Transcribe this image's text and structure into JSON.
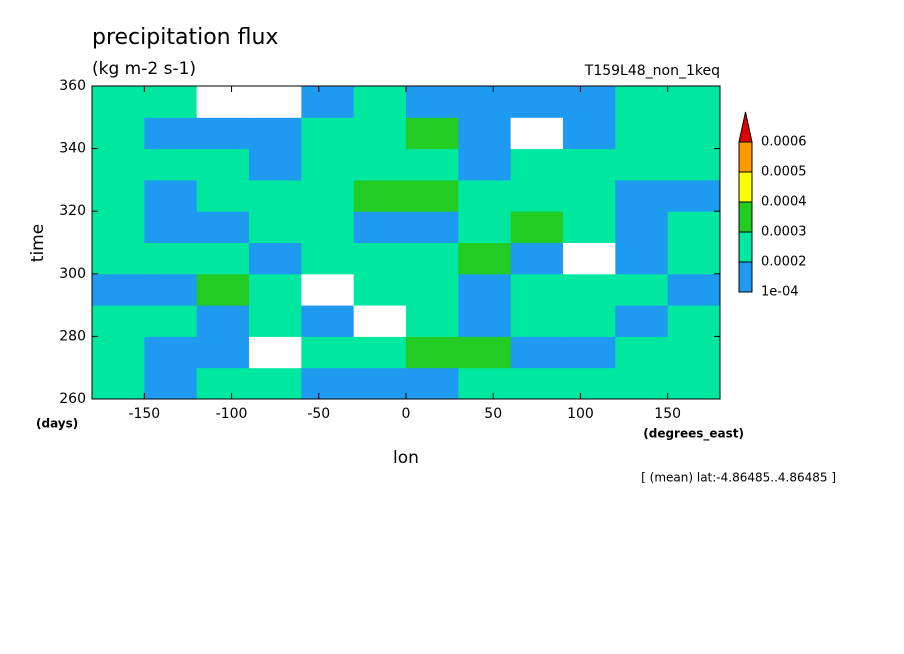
{
  "chart_data": {
    "type": "heatmap",
    "title": "precipitation flux",
    "subtitle": "(kg m-2 s-1)",
    "run_label": "T159L48_non_1keq",
    "ylabel": "time",
    "yunit": "(days)",
    "xlabel": "lon",
    "xunit": "(degrees_east)",
    "note": "[ (mean) lat:-4.86485..4.86485 ]",
    "xlim": [
      -180,
      180
    ],
    "ylim": [
      260,
      360
    ],
    "xticks": [
      -150,
      -100,
      -50,
      0,
      50,
      100,
      150
    ],
    "yticks": [
      260,
      280,
      300,
      320,
      340,
      360
    ],
    "x": [
      -165,
      -135,
      -105,
      -75,
      -45,
      -15,
      15,
      45,
      75,
      105,
      135,
      165
    ],
    "y": [
      265,
      275,
      285,
      295,
      305,
      315,
      325,
      335,
      345,
      355
    ],
    "z": [
      [
        0.00022,
        0.00018,
        0.00025,
        0.0002,
        0.00015,
        0.00018,
        0.00012,
        0.0002,
        0.00025,
        0.0002,
        0.00028,
        0.00022
      ],
      [
        0.0002,
        0.00015,
        0.00012,
        8e-05,
        0.0002,
        0.00028,
        0.00035,
        0.0003,
        0.00012,
        0.00018,
        0.00025,
        0.0002
      ],
      [
        0.00025,
        0.0002,
        0.00018,
        0.00022,
        0.00015,
        8e-05,
        0.0002,
        0.00018,
        0.00025,
        0.0002,
        0.00015,
        0.00022
      ],
      [
        0.00012,
        0.00018,
        0.00032,
        0.00025,
        6e-05,
        0.0002,
        0.00022,
        0.00015,
        0.0002,
        0.00025,
        0.0002,
        0.00018
      ],
      [
        0.0002,
        0.00025,
        0.0002,
        0.00018,
        0.00028,
        0.0002,
        0.00025,
        0.00035,
        0.00012,
        8e-05,
        0.00015,
        0.0002
      ],
      [
        0.00022,
        0.00018,
        0.00015,
        0.0002,
        0.0002,
        0.00012,
        0.00018,
        0.00025,
        0.0003,
        0.00022,
        0.00018,
        0.00025
      ],
      [
        0.00025,
        0.00015,
        0.0002,
        0.00028,
        0.00022,
        0.0003,
        0.00035,
        0.00022,
        0.0002,
        0.00025,
        0.00012,
        0.00018
      ],
      [
        0.0002,
        0.00022,
        0.00025,
        0.00018,
        0.0002,
        0.00028,
        0.00025,
        0.00018,
        0.00022,
        0.0002,
        0.00028,
        0.00025
      ],
      [
        0.00028,
        0.0001,
        0.00015,
        0.00018,
        0.00022,
        0.00025,
        0.0003,
        0.00012,
        6e-05,
        0.00018,
        0.00025,
        0.00028
      ],
      [
        0.00022,
        0.0002,
        8e-05,
        6e-05,
        0.00018,
        0.0002,
        0.00015,
        0.00018,
        0.0001,
        0.00015,
        0.0002,
        0.00025
      ]
    ],
    "levels": [
      {
        "value": 0.0001,
        "label": "1e-04"
      },
      0.0002,
      0.0003,
      0.0004,
      0.0005,
      0.0006
    ],
    "colors": [
      "#ffffff",
      "#1e9bf0",
      "#00e8a0",
      "#22cc22",
      "#ffff00",
      "#ff9900",
      "#e00000"
    ]
  }
}
